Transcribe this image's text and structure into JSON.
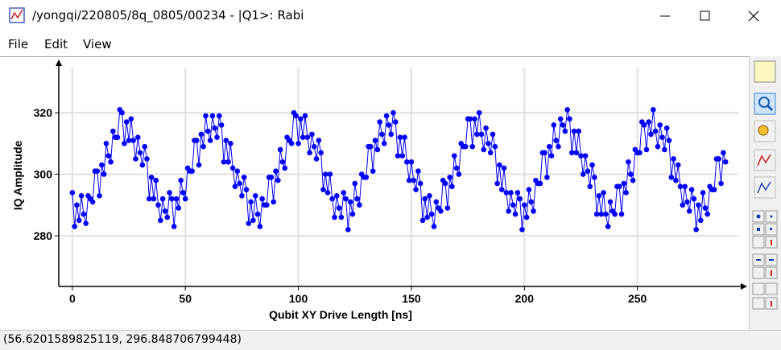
{
  "window": {
    "title": "/yongqi/220805/8q_0805/00234 - |Q1>: Rabi",
    "menu": [
      "File",
      "Edit",
      "View"
    ],
    "status": "(56.6201589825119, 296.848706799448)"
  },
  "chart_data": {
    "type": "line",
    "x_label": "Qubit XY Drive Length [ns]",
    "y_label": "IQ Amplitude",
    "color": "#0000ff",
    "markers": true,
    "grid": true,
    "xlim": [
      -6,
      295
    ],
    "ylim": [
      263.5,
      336
    ],
    "xticks": [
      0,
      50,
      100,
      150,
      200,
      250
    ],
    "yticks": [
      280,
      300,
      320
    ],
    "x": [
      0,
      1,
      2,
      3,
      4,
      5,
      6,
      7,
      8,
      9,
      10,
      11,
      12,
      13,
      14,
      15,
      16,
      17,
      18,
      19,
      20,
      21,
      22,
      23,
      24,
      25,
      26,
      27,
      28,
      29,
      30,
      31,
      32,
      33,
      34,
      35,
      36,
      37,
      38,
      39,
      40,
      41,
      42,
      43,
      44,
      45,
      46,
      47,
      48,
      49,
      50,
      51,
      52,
      53,
      54,
      55,
      56,
      57,
      58,
      59,
      60,
      61,
      62,
      63,
      64,
      65,
      66,
      67,
      68,
      69,
      70,
      71,
      72,
      73,
      74,
      75,
      76,
      77,
      78,
      79,
      80,
      81,
      82,
      83,
      84,
      85,
      86,
      87,
      88,
      89,
      90,
      91,
      92,
      93,
      94,
      95,
      96,
      97,
      98,
      99,
      100,
      101,
      102,
      103,
      104,
      105,
      106,
      107,
      108,
      109,
      110,
      111,
      112,
      113,
      114,
      115,
      116,
      117,
      118,
      119,
      120,
      121,
      122,
      123,
      124,
      125,
      126,
      127,
      128,
      129,
      130,
      131,
      132,
      133,
      134,
      135,
      136,
      137,
      138,
      139,
      140,
      141,
      142,
      143,
      144,
      145,
      146,
      147,
      148,
      149,
      150,
      151,
      152,
      153,
      154,
      155,
      156,
      157,
      158,
      159,
      160,
      161,
      162,
      163,
      164,
      165,
      166,
      167,
      168,
      169,
      170,
      171,
      172,
      173,
      174,
      175,
      176,
      177,
      178,
      179,
      180,
      181,
      182,
      183,
      184,
      185,
      186,
      187,
      188,
      189,
      190,
      191,
      192,
      193,
      194,
      195,
      196,
      197,
      198,
      199,
      200,
      201,
      202,
      203,
      204,
      205,
      206,
      207,
      208,
      209,
      210,
      211,
      212,
      213,
      214,
      215,
      216,
      217,
      218,
      219,
      220,
      221,
      222,
      223,
      224,
      225,
      226,
      227,
      228,
      229,
      230,
      231,
      232,
      233,
      234,
      235,
      236,
      237,
      238,
      239,
      240,
      241,
      242,
      243,
      244,
      245,
      246,
      247,
      248,
      249,
      250,
      251,
      252,
      253,
      254,
      255,
      256,
      257,
      258,
      259,
      260,
      261,
      262,
      263,
      264,
      265,
      266,
      267,
      268,
      269,
      270,
      271,
      272,
      273,
      274,
      275,
      276,
      277,
      278,
      279,
      280,
      281,
      282,
      283,
      284,
      285,
      286,
      287,
      288,
      289
    ],
    "values": [
      294,
      283,
      290,
      285,
      293,
      287,
      284,
      293,
      292,
      291,
      301,
      301,
      293,
      303,
      300,
      310,
      306,
      304,
      314,
      312,
      312,
      321,
      320,
      310,
      317,
      311,
      318,
      311,
      305,
      312,
      307,
      303,
      309,
      305,
      292,
      299,
      292,
      298,
      290,
      285,
      292,
      288,
      286,
      294,
      292,
      283,
      292,
      289,
      298,
      294,
      292,
      302,
      301,
      301,
      311,
      311,
      303,
      313,
      309,
      319,
      314,
      311,
      319,
      315,
      312,
      319,
      316,
      304,
      311,
      304,
      310,
      302,
      296,
      301,
      297,
      293,
      299,
      295,
      284,
      291,
      285,
      293,
      287,
      283,
      292,
      290,
      290,
      299,
      299,
      291,
      301,
      298,
      308,
      304,
      302,
      312,
      311,
      310,
      320,
      319,
      310,
      318,
      312,
      319,
      312,
      307,
      313,
      309,
      305,
      311,
      307,
      295,
      300,
      294,
      300,
      292,
      286,
      293,
      289,
      286,
      294,
      292,
      282,
      291,
      287,
      297,
      292,
      290,
      300,
      299,
      299,
      309,
      309,
      301,
      311,
      308,
      317,
      313,
      310,
      319,
      316,
      313,
      320,
      317,
      306,
      312,
      306,
      312,
      304,
      298,
      304,
      298,
      295,
      301,
      297,
      285,
      292,
      286,
      293,
      287,
      283,
      291,
      289,
      288,
      298,
      297,
      289,
      299,
      296,
      306,
      302,
      300,
      310,
      309,
      309,
      318,
      318,
      309,
      318,
      313,
      320,
      313,
      308,
      315,
      310,
      307,
      313,
      309,
      297,
      303,
      295,
      302,
      294,
      288,
      294,
      290,
      287,
      294,
      292,
      282,
      290,
      286,
      295,
      291,
      288,
      298,
      297,
      297,
      307,
      307,
      299,
      309,
      306,
      316,
      311,
      309,
      318,
      316,
      314,
      321,
      318,
      307,
      314,
      307,
      314,
      306,
      300,
      306,
      301,
      296,
      303,
      299,
      287,
      293,
      287,
      294,
      287,
      283,
      291,
      288,
      287,
      296,
      296,
      287,
      297,
      294,
      304,
      300,
      298,
      308,
      307,
      307,
      317,
      316,
      308,
      317,
      313,
      321,
      314,
      309,
      316,
      312,
      308,
      315,
      311,
      299,
      305,
      298,
      303,
      296,
      290,
      296,
      291,
      288,
      295,
      292,
      282,
      290,
      285,
      294,
      289,
      287,
      296,
      295,
      295,
      305,
      305,
      297,
      307,
      304
    ]
  }
}
